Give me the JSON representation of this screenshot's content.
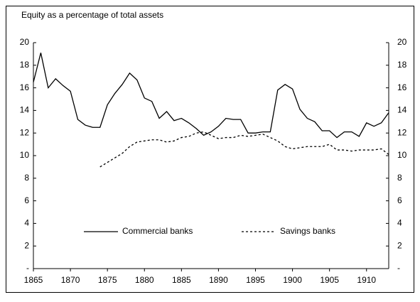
{
  "chart_data": {
    "type": "line",
    "title": "Equity as a percentage of total assets",
    "x": [
      1865,
      1866,
      1867,
      1868,
      1869,
      1870,
      1871,
      1872,
      1873,
      1874,
      1875,
      1876,
      1877,
      1878,
      1879,
      1880,
      1881,
      1882,
      1883,
      1884,
      1885,
      1886,
      1887,
      1888,
      1889,
      1890,
      1891,
      1892,
      1893,
      1894,
      1895,
      1896,
      1897,
      1898,
      1899,
      1900,
      1901,
      1902,
      1903,
      1904,
      1905,
      1906,
      1907,
      1908,
      1909,
      1910,
      1911,
      1912,
      1913
    ],
    "series": [
      {
        "name": "Commercial banks",
        "color": "#000000",
        "dash": false,
        "values": [
          16.5,
          19.1,
          16.0,
          16.8,
          16.2,
          15.7,
          13.2,
          12.7,
          12.5,
          12.5,
          14.5,
          15.5,
          16.3,
          17.3,
          16.7,
          15.1,
          14.8,
          13.3,
          13.9,
          13.1,
          13.3,
          12.9,
          12.4,
          11.8,
          12.1,
          12.6,
          13.3,
          13.2,
          13.2,
          12.0,
          12.0,
          12.1,
          12.1,
          15.8,
          16.3,
          15.9,
          14.1,
          13.3,
          13.0,
          12.2,
          12.2,
          11.6,
          12.1,
          12.1,
          11.7,
          12.9,
          12.6,
          12.9,
          13.8
        ]
      },
      {
        "name": "Savings banks",
        "color": "#000000",
        "dash": true,
        "values": [
          null,
          null,
          null,
          null,
          null,
          null,
          null,
          null,
          null,
          9.0,
          9.4,
          9.8,
          10.2,
          10.8,
          11.2,
          11.3,
          11.4,
          11.4,
          11.2,
          11.3,
          11.6,
          11.7,
          12.0,
          12.1,
          11.8,
          11.5,
          11.6,
          11.6,
          11.8,
          11.7,
          11.8,
          11.9,
          11.6,
          11.3,
          10.8,
          10.6,
          10.7,
          10.8,
          10.8,
          10.8,
          11.0,
          10.5,
          10.5,
          10.4,
          10.5,
          10.5,
          10.5,
          10.6,
          10.1
        ]
      }
    ],
    "xlim": [
      1865,
      1913
    ],
    "xticks": [
      1865,
      1870,
      1875,
      1880,
      1885,
      1890,
      1895,
      1900,
      1905,
      1910
    ],
    "ylim": [
      0,
      20
    ],
    "yticks": [
      {
        "value": 0,
        "label": "-"
      },
      2,
      4,
      6,
      8,
      10,
      12,
      14,
      16,
      18,
      20
    ],
    "mirror_y": true,
    "grid": false,
    "legend": "lower center"
  }
}
